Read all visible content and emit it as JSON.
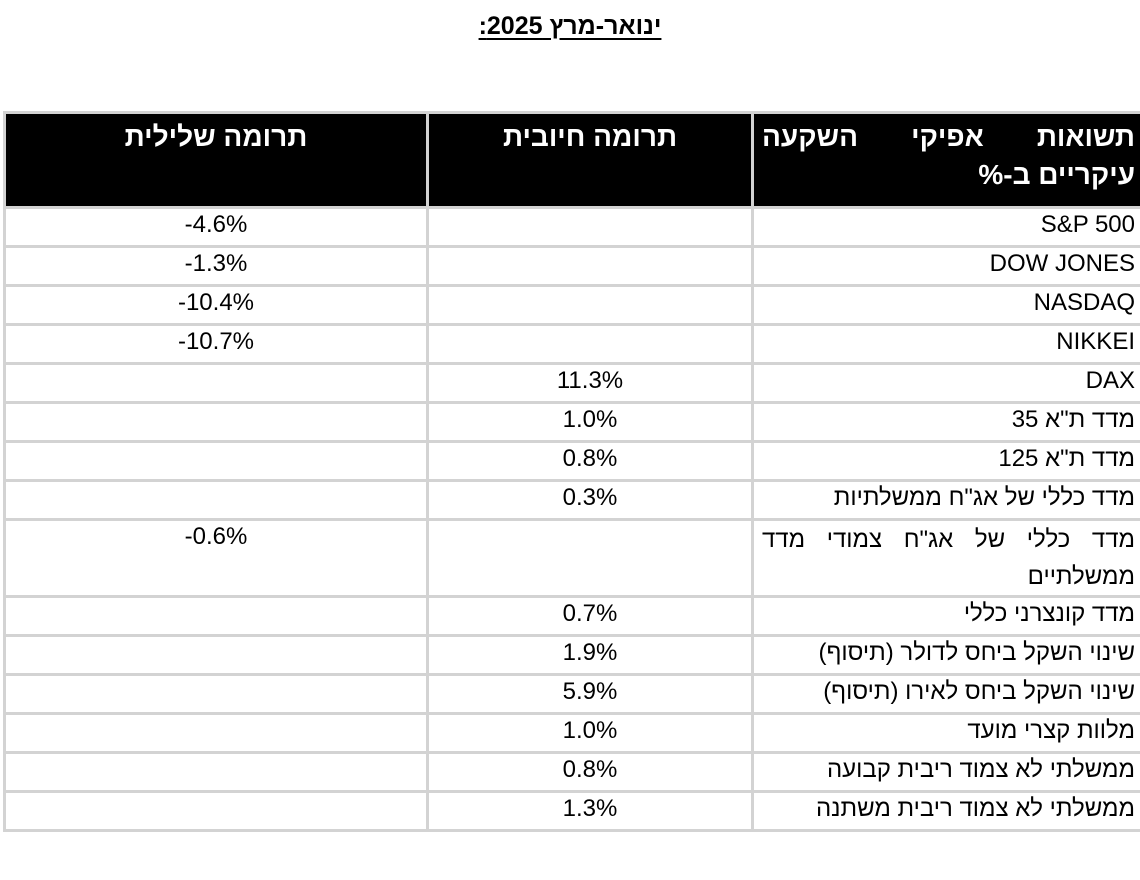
{
  "title": "ינואר-מרץ 2025:",
  "table": {
    "headers": {
      "assets": "תשואות אפיקי השקעה עיקריים ב-%",
      "positive": "תרומה חיובית",
      "negative": "תרומה שלילית"
    },
    "rows": [
      {
        "asset": "S&P 500",
        "positive": "",
        "negative": "-4.6%"
      },
      {
        "asset": "DOW JONES",
        "positive": "",
        "negative": "-1.3%"
      },
      {
        "asset": "NASDAQ",
        "positive": "",
        "negative": "-10.4%"
      },
      {
        "asset": "NIKKEI",
        "positive": "",
        "negative": "-10.7%"
      },
      {
        "asset": "DAX",
        "positive": "11.3%",
        "negative": ""
      },
      {
        "asset": "מדד ת\"א 35",
        "positive": "1.0%",
        "negative": ""
      },
      {
        "asset": "מדד ת\"א 125",
        "positive": "0.8%",
        "negative": ""
      },
      {
        "asset": "מדד כללי של אג\"ח ממשלתיות",
        "positive": "0.3%",
        "negative": ""
      },
      {
        "asset": "מדד כללי של אג\"ח צמודי מדד ממשלתיים",
        "positive": "",
        "negative": "-0.6%"
      },
      {
        "asset": "מדד קונצרני כללי",
        "positive": "0.7%",
        "negative": ""
      },
      {
        "asset": "שינוי השקל ביחס לדולר (תיסוף)",
        "positive": "1.9%",
        "negative": ""
      },
      {
        "asset": "שינוי השקל ביחס לאירו (תיסוף)",
        "positive": "5.9%",
        "negative": ""
      },
      {
        "asset": "מלוות קצרי מועד",
        "positive": "1.0%",
        "negative": ""
      },
      {
        "asset": "ממשלתי לא צמוד ריבית קבועה",
        "positive": "0.8%",
        "negative": ""
      },
      {
        "asset": "ממשלתי לא צמוד ריבית משתנה",
        "positive": "1.3%",
        "negative": ""
      }
    ]
  }
}
